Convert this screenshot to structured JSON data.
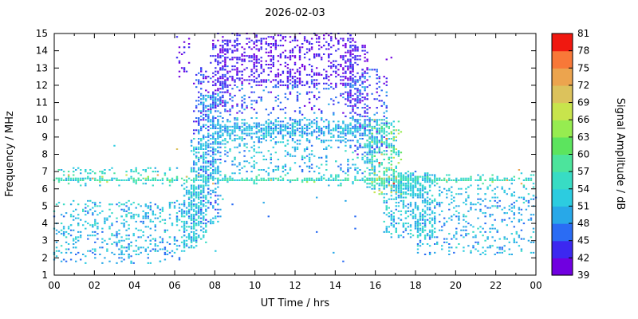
{
  "chart_data": {
    "type": "scatter",
    "title": "2026-02-03",
    "xlabel": "UT Time / hrs",
    "ylabel": "Frequency / MHz",
    "xlim": [
      0,
      24
    ],
    "ylim": [
      1,
      15
    ],
    "x_tick_labels": [
      "00",
      "02",
      "04",
      "06",
      "08",
      "10",
      "12",
      "14",
      "16",
      "18",
      "20",
      "22",
      "00"
    ],
    "x_tick_hours": [
      0,
      2,
      4,
      6,
      8,
      10,
      12,
      14,
      16,
      18,
      20,
      22,
      24
    ],
    "y_ticks": [
      1,
      2,
      3,
      4,
      5,
      6,
      7,
      8,
      9,
      10,
      11,
      12,
      13,
      14,
      15
    ],
    "grid": false,
    "colorbar": {
      "label": "Signal Amplitude / dB",
      "ticks": [
        39,
        42,
        45,
        48,
        51,
        54,
        57,
        60,
        63,
        66,
        69,
        72,
        75,
        78,
        81
      ],
      "colors": [
        "#7000e0",
        "#3c28f0",
        "#2a6cf4",
        "#28a8e8",
        "#2ccce0",
        "#38dcc4",
        "#4ce49c",
        "#5ce45e",
        "#96ec50",
        "#c8e44c",
        "#dcc25c",
        "#eca44e",
        "#f87838",
        "#f01810"
      ]
    },
    "point_grid": {
      "t_step": 0.12,
      "f_step": 0.1
    },
    "clusters": [
      {
        "t": [
          0,
          6.6
        ],
        "f": [
          2.2,
          5.3
        ],
        "n": 420,
        "a": [
          46,
          56
        ]
      },
      {
        "t": [
          0,
          6.3
        ],
        "f": [
          1.7,
          2.5
        ],
        "n": 60,
        "a": [
          46,
          53
        ]
      },
      {
        "t": [
          0,
          24
        ],
        "f": [
          6.45,
          6.62
        ],
        "n": 400,
        "a": [
          50,
          60
        ]
      },
      {
        "t": [
          0,
          24
        ],
        "f": [
          6.2,
          6.9
        ],
        "n": 150,
        "a": [
          50,
          60
        ]
      },
      {
        "t": [
          0,
          24
        ],
        "f": [
          6.3,
          6.8
        ],
        "n": 22,
        "a": [
          63,
          74
        ]
      },
      {
        "t": [
          0.2,
          6.2
        ],
        "f": [
          6.9,
          7.2
        ],
        "n": 55,
        "a": [
          50,
          58
        ]
      },
      {
        "t": [
          6.4,
          7.1
        ],
        "f": [
          2.6,
          6.2
        ],
        "n": 140,
        "a": [
          46,
          56
        ]
      },
      {
        "t": [
          6.8,
          7.6
        ],
        "f": [
          3.0,
          9.0
        ],
        "n": 240,
        "a": [
          46,
          56
        ]
      },
      {
        "t": [
          7.2,
          8.3
        ],
        "f": [
          4.0,
          11.5
        ],
        "n": 330,
        "a": [
          44,
          54
        ]
      },
      {
        "t": [
          7.0,
          7.7
        ],
        "f": [
          9.0,
          13.0
        ],
        "n": 80,
        "a": [
          40,
          48
        ]
      },
      {
        "t": [
          8.0,
          15.0
        ],
        "f": [
          12.0,
          15.0
        ],
        "n": 650,
        "a": [
          39,
          45
        ]
      },
      {
        "t": [
          7.8,
          8.7
        ],
        "f": [
          10.5,
          14.6
        ],
        "n": 140,
        "a": [
          39,
          46
        ]
      },
      {
        "t": [
          14.5,
          15.7
        ],
        "f": [
          10.0,
          14.4
        ],
        "n": 140,
        "a": [
          39,
          46
        ]
      },
      {
        "t": [
          8.0,
          15.2
        ],
        "f": [
          10.3,
          12.3
        ],
        "n": 230,
        "a": [
          41,
          49
        ]
      },
      {
        "t": [
          7.6,
          16.2
        ],
        "f": [
          8.6,
          10.1
        ],
        "n": 520,
        "a": [
          45,
          55
        ]
      },
      {
        "t": [
          8.0,
          15.5
        ],
        "f": [
          9.2,
          9.7
        ],
        "n": 200,
        "a": [
          46,
          54
        ]
      },
      {
        "t": [
          7.6,
          16.0
        ],
        "f": [
          6.9,
          8.6
        ],
        "n": 230,
        "a": [
          46,
          56
        ]
      },
      {
        "t": [
          15.0,
          16.6
        ],
        "f": [
          8.0,
          13.0
        ],
        "n": 180,
        "a": [
          40,
          50
        ]
      },
      {
        "t": [
          15.5,
          17.2
        ],
        "f": [
          6.0,
          10.0
        ],
        "n": 240,
        "a": [
          48,
          60
        ]
      },
      {
        "t": [
          15.8,
          17.3
        ],
        "f": [
          5.5,
          9.5
        ],
        "n": 55,
        "a": [
          57,
          72
        ]
      },
      {
        "t": [
          16.4,
          19.0
        ],
        "f": [
          3.2,
          7.0
        ],
        "n": 380,
        "a": [
          47,
          57
        ]
      },
      {
        "t": [
          17.0,
          18.6
        ],
        "f": [
          5.5,
          6.9
        ],
        "n": 140,
        "a": [
          48,
          56
        ]
      },
      {
        "t": [
          18.0,
          24.0
        ],
        "f": [
          2.2,
          5.5
        ],
        "n": 330,
        "a": [
          46,
          55
        ]
      },
      {
        "t": [
          19.0,
          24.0
        ],
        "f": [
          5.5,
          6.2
        ],
        "n": 60,
        "a": [
          48,
          55
        ]
      },
      {
        "t": [
          6.1,
          6.7
        ],
        "f": [
          12.5,
          15.0
        ],
        "n": 22,
        "a": [
          39,
          44
        ]
      },
      {
        "t": [
          0,
          24
        ],
        "f": [
          1.8,
          5.5
        ],
        "n": 40,
        "a": [
          45,
          56
        ]
      }
    ],
    "outliers": [
      [
        6.1,
        8.3,
        70
      ],
      [
        3.05,
        8.5,
        52
      ],
      [
        23.2,
        7.1,
        74
      ],
      [
        16.25,
        7.5,
        80
      ],
      [
        15.95,
        10.0,
        69
      ],
      [
        4.6,
        6.6,
        68
      ],
      [
        1.9,
        6.55,
        72
      ],
      [
        16.6,
        13.5,
        40
      ],
      [
        16.8,
        13.6,
        41
      ],
      [
        13.9,
        2.3,
        50
      ],
      [
        16.6,
        8.9,
        75
      ],
      [
        16.9,
        6.3,
        78
      ]
    ]
  }
}
